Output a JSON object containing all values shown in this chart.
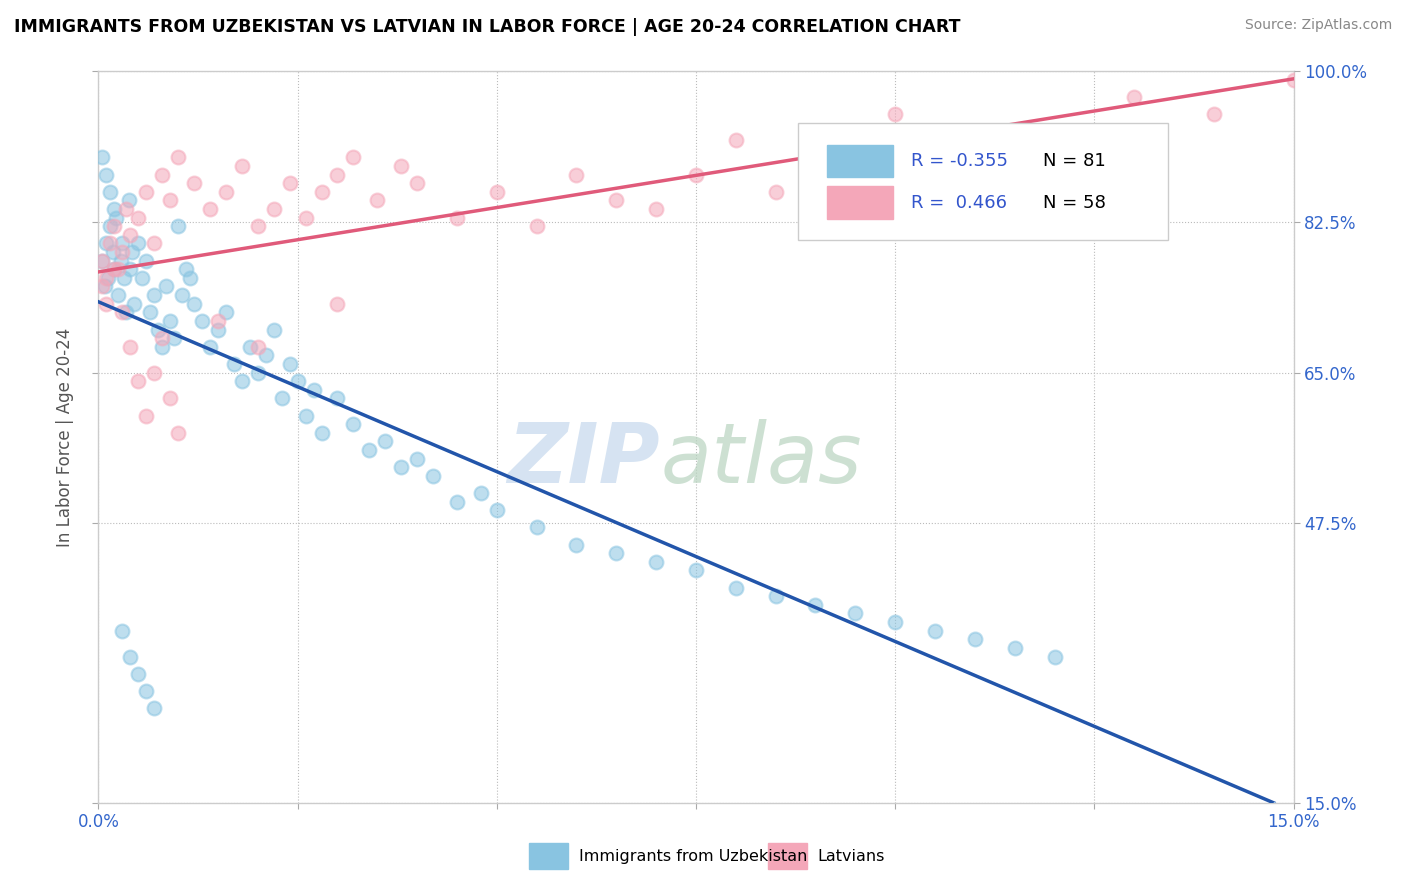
{
  "title": "IMMIGRANTS FROM UZBEKISTAN VS LATVIAN IN LABOR FORCE | AGE 20-24 CORRELATION CHART",
  "source": "Source: ZipAtlas.com",
  "ylabel_label": "In Labor Force | Age 20-24",
  "legend1_label": "Immigrants from Uzbekistan",
  "legend2_label": "Latvians",
  "R1": -0.355,
  "N1": 81,
  "R2": 0.466,
  "N2": 58,
  "color_blue": "#89c4e1",
  "color_pink": "#f4a7b9",
  "color_blue_line": "#2255aa",
  "color_pink_line": "#e05a7a",
  "color_dashed": "#aaccee",
  "seed": 42,
  "xmin": 0.0,
  "xmax": 15.0,
  "ymin": 15.0,
  "ymax": 100.0,
  "ytick_vals": [
    100.0,
    82.5,
    65.0,
    47.5,
    15.0
  ],
  "xtick_show": [
    0.0,
    15.0
  ],
  "xtick_grid": [
    0.0,
    2.5,
    5.0,
    7.5,
    10.0,
    12.5,
    15.0
  ],
  "blue_x": [
    0.05,
    0.08,
    0.1,
    0.12,
    0.15,
    0.18,
    0.2,
    0.22,
    0.25,
    0.28,
    0.3,
    0.32,
    0.35,
    0.38,
    0.4,
    0.42,
    0.45,
    0.5,
    0.55,
    0.6,
    0.65,
    0.7,
    0.75,
    0.8,
    0.85,
    0.9,
    0.95,
    1.0,
    1.05,
    1.1,
    1.15,
    1.2,
    1.3,
    1.4,
    1.5,
    1.6,
    1.7,
    1.8,
    1.9,
    2.0,
    2.1,
    2.2,
    2.3,
    2.4,
    2.5,
    2.6,
    2.7,
    2.8,
    3.0,
    3.2,
    3.4,
    3.6,
    3.8,
    4.0,
    4.2,
    4.5,
    4.8,
    5.0,
    5.5,
    6.0,
    6.5,
    7.0,
    7.5,
    8.0,
    8.5,
    9.0,
    9.5,
    10.0,
    10.5,
    11.0,
    11.5,
    12.0,
    0.05,
    0.1,
    0.15,
    0.2,
    0.3,
    0.4,
    0.5,
    0.6,
    0.7
  ],
  "blue_y": [
    78,
    75,
    80,
    76,
    82,
    79,
    77,
    83,
    74,
    78,
    80,
    76,
    72,
    85,
    77,
    79,
    73,
    80,
    76,
    78,
    72,
    74,
    70,
    68,
    75,
    71,
    69,
    82,
    74,
    77,
    76,
    73,
    71,
    68,
    70,
    72,
    66,
    64,
    68,
    65,
    67,
    70,
    62,
    66,
    64,
    60,
    63,
    58,
    62,
    59,
    56,
    57,
    54,
    55,
    53,
    50,
    51,
    49,
    47,
    45,
    44,
    43,
    42,
    40,
    39,
    38,
    37,
    36,
    35,
    34,
    33,
    32,
    90,
    88,
    86,
    84,
    35,
    32,
    30,
    28,
    26
  ],
  "pink_x": [
    0.05,
    0.1,
    0.15,
    0.2,
    0.25,
    0.3,
    0.35,
    0.4,
    0.5,
    0.6,
    0.7,
    0.8,
    0.9,
    1.0,
    1.2,
    1.4,
    1.6,
    1.8,
    2.0,
    2.2,
    2.4,
    2.6,
    2.8,
    3.0,
    3.2,
    3.5,
    3.8,
    4.0,
    4.5,
    5.0,
    5.5,
    6.0,
    6.5,
    7.0,
    7.5,
    8.0,
    8.5,
    9.0,
    10.0,
    11.0,
    12.0,
    13.0,
    14.0,
    15.0,
    0.05,
    0.1,
    0.2,
    0.3,
    0.4,
    0.5,
    0.6,
    0.7,
    0.8,
    0.9,
    1.0,
    1.5,
    2.0,
    3.0
  ],
  "pink_y": [
    78,
    76,
    80,
    82,
    77,
    79,
    84,
    81,
    83,
    86,
    80,
    88,
    85,
    90,
    87,
    84,
    86,
    89,
    82,
    84,
    87,
    83,
    86,
    88,
    90,
    85,
    89,
    87,
    83,
    86,
    82,
    88,
    85,
    84,
    88,
    92,
    86,
    90,
    95,
    93,
    88,
    97,
    95,
    99,
    75,
    73,
    77,
    72,
    68,
    64,
    60,
    65,
    69,
    62,
    58,
    71,
    68,
    73
  ]
}
